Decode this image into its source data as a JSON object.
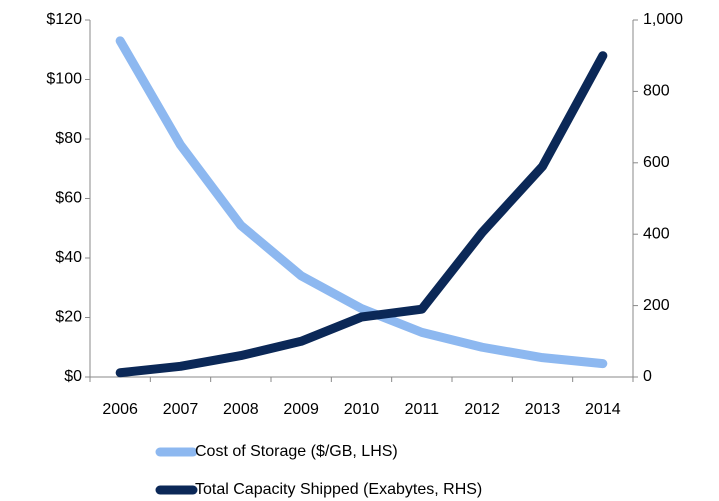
{
  "chart_data": {
    "type": "line",
    "categories": [
      "2006",
      "2007",
      "2008",
      "2009",
      "2010",
      "2011",
      "2012",
      "2013",
      "2014"
    ],
    "series": [
      {
        "name": "Cost of Storage ($/GB, LHS)",
        "color": "#8db8f0",
        "values": [
          113,
          78,
          51,
          34,
          23,
          15,
          10,
          6.5,
          4.5
        ]
      },
      {
        "name": "Total Capacity Shipped (Exabytes, RHS)",
        "color": "#0b2857",
        "axis": "y2",
        "values": [
          12,
          30,
          60,
          100,
          168,
          190,
          405,
          590,
          900
        ]
      }
    ],
    "ylim": [
      0,
      120
    ],
    "yticks": [
      {
        "value": 0,
        "label": "$0"
      },
      {
        "value": 20,
        "label": "$20"
      },
      {
        "value": 40,
        "label": "$40"
      },
      {
        "value": 60,
        "label": "$60"
      },
      {
        "value": 80,
        "label": "$80"
      },
      {
        "value": 100,
        "label": "$100"
      },
      {
        "value": 120,
        "label": "$120"
      }
    ],
    "y2lim": [
      0,
      1000
    ],
    "y2ticks": [
      0,
      200,
      400,
      600,
      800,
      {
        "value": 1000,
        "label": "1,000"
      }
    ],
    "grid": false,
    "legend": "bottom"
  }
}
